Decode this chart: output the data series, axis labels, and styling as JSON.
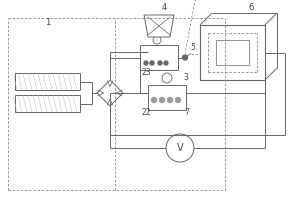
{
  "lc": "#666666",
  "dc": "#888888",
  "lbl": "#444444",
  "lw": 0.7,
  "fig_w": 3.0,
  "fig_h": 2.0,
  "dpi": 100
}
